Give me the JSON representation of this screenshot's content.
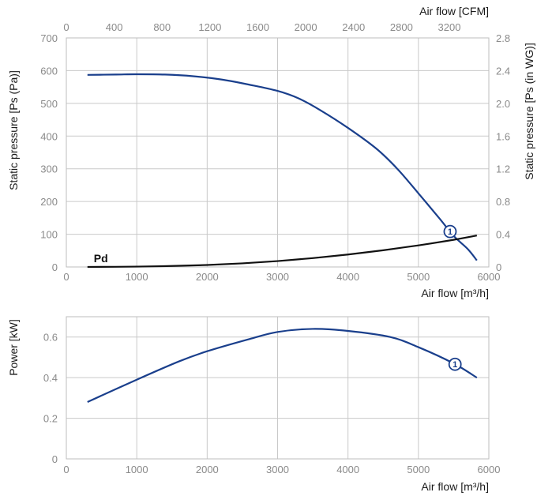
{
  "colors": {
    "curve": "#1a3f8c",
    "pd": "#111111"
  },
  "chart_data": [
    {
      "type": "line",
      "title": "",
      "xlabel": "Air flow [m³/h]",
      "x2label": "Air flow [CFM]",
      "ylabel": "Static pressure [Ps (Pa)]",
      "y2label": "Static pressure [Ps (in WG)]",
      "xlim": [
        0,
        6000
      ],
      "ylim": [
        0,
        700
      ],
      "x2lim": [
        0,
        3530
      ],
      "y2lim": [
        0,
        2.8
      ],
      "xticks": [
        0,
        1000,
        2000,
        3000,
        4000,
        5000,
        6000
      ],
      "yticks": [
        0,
        100,
        200,
        300,
        400,
        500,
        600,
        700
      ],
      "x2ticks": [
        0,
        400,
        800,
        1200,
        1600,
        2000,
        2400,
        2800,
        3200
      ],
      "y2ticks": [
        "0",
        "0.4",
        "0.8",
        "1.2",
        "1.6",
        "2.0",
        "2.4",
        "2.8"
      ],
      "grid": true,
      "series": [
        {
          "name": "1",
          "marker_x": 5450,
          "x": [
            300,
            700,
            1000,
            1400,
            1800,
            2200,
            2600,
            3000,
            3300,
            3600,
            4000,
            4400,
            4700,
            5000,
            5300,
            5500,
            5700,
            5830
          ],
          "y": [
            587,
            588,
            589,
            588,
            583,
            573,
            557,
            538,
            515,
            480,
            425,
            362,
            300,
            225,
            148,
            95,
            55,
            20
          ]
        },
        {
          "name": "Pd",
          "x": [
            300,
            1000,
            1500,
            2000,
            2500,
            3000,
            3500,
            4000,
            4500,
            5000,
            5500,
            5830
          ],
          "y": [
            0,
            1,
            3,
            6,
            11,
            18,
            27,
            38,
            51,
            66,
            83,
            96
          ]
        }
      ]
    },
    {
      "type": "line",
      "title": "",
      "xlabel": "Air flow [m³/h]",
      "ylabel": "Power [kW]",
      "xlim": [
        0,
        6000
      ],
      "ylim": [
        0,
        0.7
      ],
      "xticks": [
        0,
        1000,
        2000,
        3000,
        4000,
        5000,
        6000
      ],
      "yticks": [
        "0",
        "0.2",
        "0.4",
        "0.6"
      ],
      "ytick_values": [
        0,
        0.2,
        0.4,
        0.6
      ],
      "grid": true,
      "series": [
        {
          "name": "1",
          "marker_x": 5520,
          "x": [
            300,
            1000,
            1600,
            2000,
            2600,
            3000,
            3500,
            4000,
            4600,
            5000,
            5500,
            5830
          ],
          "y": [
            0.28,
            0.39,
            0.48,
            0.53,
            0.59,
            0.625,
            0.64,
            0.63,
            0.6,
            0.55,
            0.47,
            0.4
          ]
        }
      ]
    }
  ]
}
